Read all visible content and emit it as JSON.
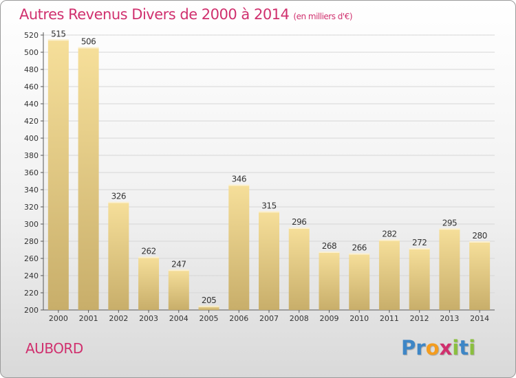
{
  "title": "Autres Revenus Divers de 2000 à 2014",
  "subtitle": "(en milliers d'€)",
  "commune": "AUBORD",
  "logo": {
    "letters": [
      {
        "char": "P",
        "color": "#3e86c6"
      },
      {
        "char": "r",
        "color": "#3e86c6"
      },
      {
        "char": "o",
        "color": "#f39c1f"
      },
      {
        "char": "x",
        "color": "#d0306e"
      },
      {
        "char": "i",
        "color": "#8bbf3f"
      },
      {
        "char": "t",
        "color": "#3e86c6"
      },
      {
        "char": "i",
        "color": "#8bbf3f"
      }
    ]
  },
  "colors": {
    "title": "#d0306e",
    "bar_top": "#f6df9a",
    "bar_bottom": "#c8ae6a",
    "grid": "#d6d6d6"
  },
  "chart_data": {
    "type": "bar",
    "title": "Autres Revenus Divers de 2000 à 2014",
    "subtitle": "(en milliers d'€)",
    "categories": [
      "2000",
      "2001",
      "2002",
      "2003",
      "2004",
      "2005",
      "2006",
      "2007",
      "2008",
      "2009",
      "2010",
      "2011",
      "2012",
      "2013",
      "2014"
    ],
    "values": [
      515,
      506,
      326,
      262,
      247,
      205,
      346,
      315,
      296,
      268,
      266,
      282,
      272,
      295,
      280
    ],
    "ylim": [
      200,
      520
    ],
    "yticks": [
      200,
      220,
      240,
      260,
      280,
      300,
      320,
      340,
      360,
      380,
      400,
      420,
      440,
      460,
      480,
      500,
      520
    ],
    "grid": true,
    "data_labels": true
  }
}
